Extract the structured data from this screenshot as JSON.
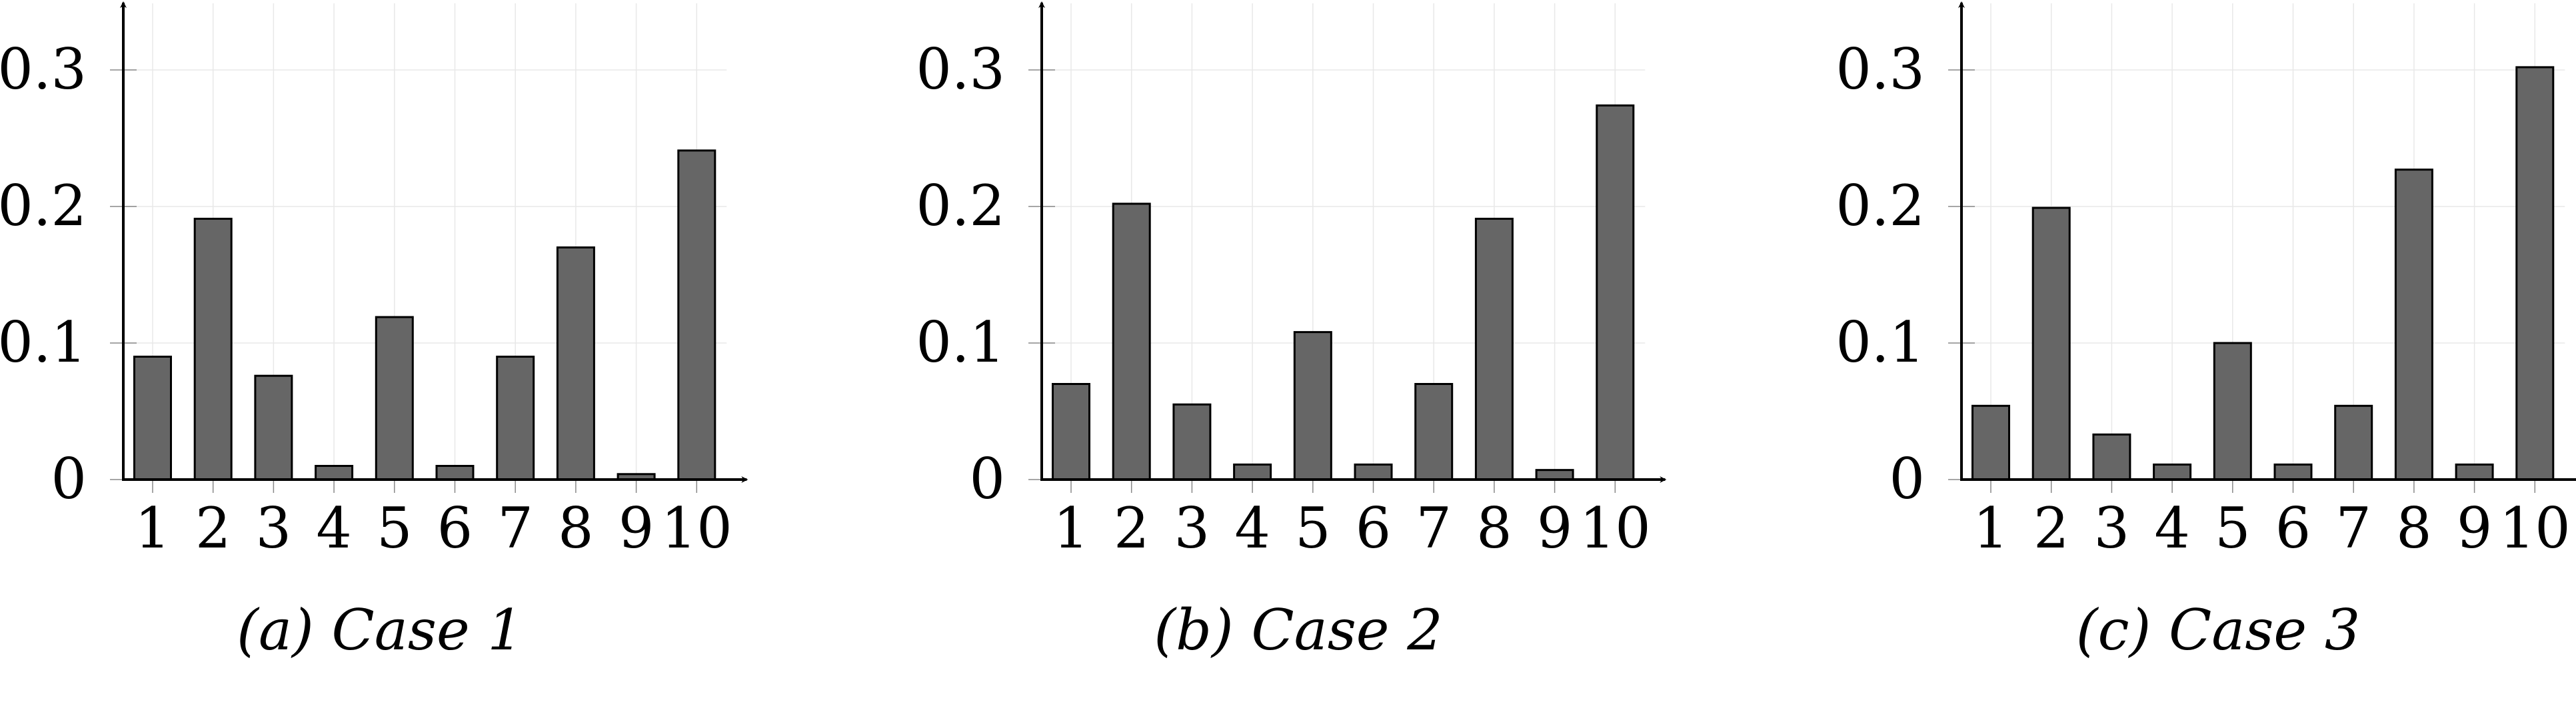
{
  "chart_data": [
    {
      "type": "bar",
      "caption": "(a) Case 1",
      "categories": [
        "1",
        "2",
        "3",
        "4",
        "5",
        "6",
        "7",
        "8",
        "9",
        "10"
      ],
      "values": [
        0.09,
        0.191,
        0.076,
        0.01,
        0.119,
        0.01,
        0.09,
        0.17,
        0.004,
        0.241
      ],
      "yticks": [
        "0",
        "0.1",
        "0.2",
        "0.3"
      ],
      "ylim": [
        0,
        0.34
      ],
      "grid": true,
      "bar_color": "#666666"
    },
    {
      "type": "bar",
      "caption": "(b) Case 2",
      "categories": [
        "1",
        "2",
        "3",
        "4",
        "5",
        "6",
        "7",
        "8",
        "9",
        "10"
      ],
      "values": [
        0.07,
        0.202,
        0.055,
        0.011,
        0.108,
        0.011,
        0.07,
        0.191,
        0.007,
        0.274
      ],
      "yticks": [
        "0",
        "0.1",
        "0.2",
        "0.3"
      ],
      "ylim": [
        0,
        0.34
      ],
      "grid": true,
      "bar_color": "#666666"
    },
    {
      "type": "bar",
      "caption": "(c) Case 3",
      "categories": [
        "1",
        "2",
        "3",
        "4",
        "5",
        "6",
        "7",
        "8",
        "9",
        "10"
      ],
      "values": [
        0.054,
        0.199,
        0.033,
        0.011,
        0.1,
        0.011,
        0.054,
        0.227,
        0.011,
        0.302
      ],
      "yticks": [
        "0",
        "0.1",
        "0.2",
        "0.3"
      ],
      "ylim": [
        0,
        0.34
      ],
      "grid": true,
      "bar_color": "#666666"
    }
  ]
}
